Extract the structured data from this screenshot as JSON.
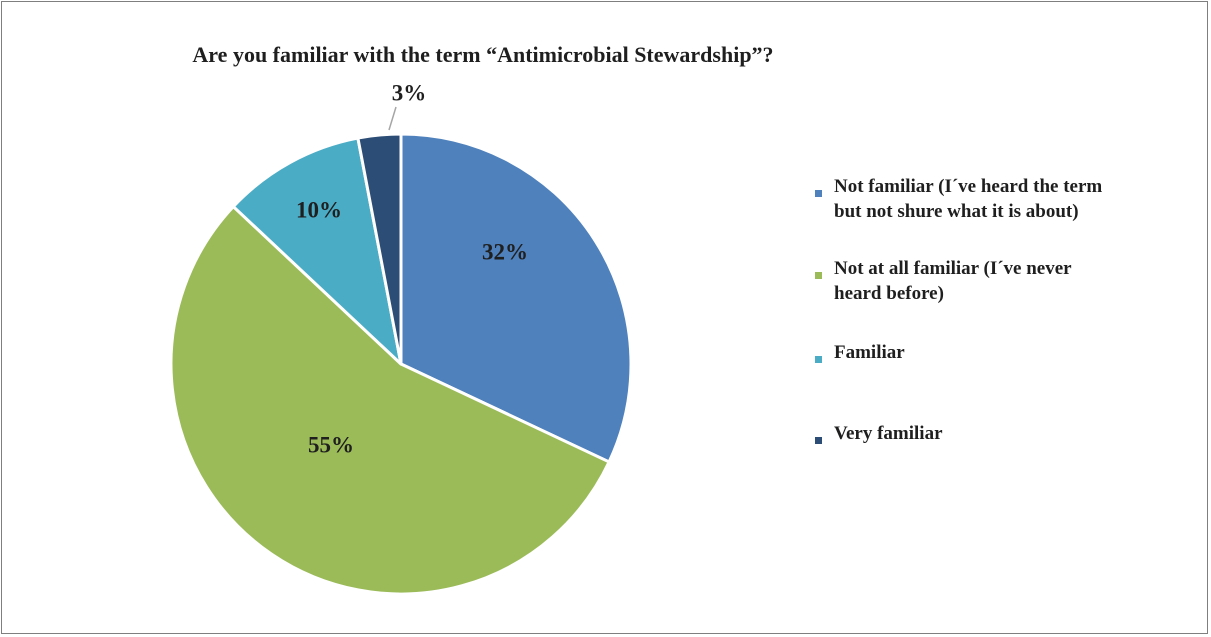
{
  "chart_data": {
    "type": "pie",
    "title": "Are you familiar with the term “Antimicrobial Stewardship”?",
    "legend_position": "right",
    "slices": [
      {
        "label": "Not familiar (I´ve heard the term\nbut not shure what it is about)",
        "value": 32,
        "display": "32%",
        "color": "#4F81BD"
      },
      {
        "label": "Not at all familiar (I´ve never\nheard before)",
        "value": 55,
        "display": "55%",
        "color": "#9BBB59"
      },
      {
        "label": "Familiar",
        "value": 10,
        "display": "10%",
        "color": "#4BACC6"
      },
      {
        "label": "Very familiar",
        "value": 3,
        "display": "3%",
        "color": "#2C4D75"
      }
    ]
  }
}
